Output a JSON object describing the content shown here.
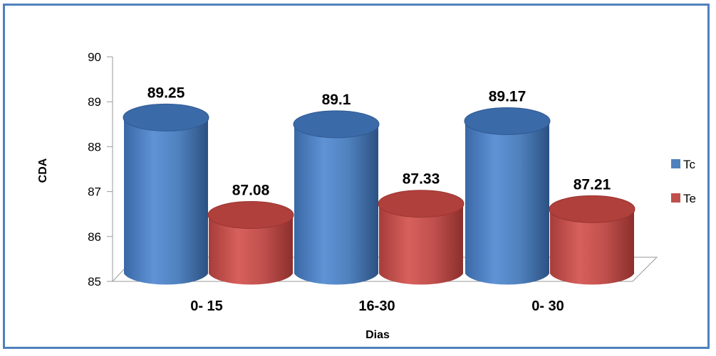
{
  "chart_data": {
    "type": "bar",
    "categories": [
      "0- 15",
      "16-30",
      "0- 30"
    ],
    "series": [
      {
        "name": "Tc",
        "values": [
          89.25,
          89.1,
          89.17
        ],
        "color": "#4f81bd"
      },
      {
        "name": "Te",
        "values": [
          87.08,
          87.33,
          87.21
        ],
        "color": "#c0504d"
      }
    ],
    "data_labels": [
      [
        "89.25",
        "89.1",
        "89.17"
      ],
      [
        "87.08",
        "87.33",
        "87.21"
      ]
    ],
    "xlabel": "Dias",
    "ylabel": "CDA",
    "ylim": [
      85,
      90
    ],
    "yticks": [
      "85",
      "86",
      "87",
      "88",
      "89",
      "90"
    ],
    "legend": "right",
    "grid": false,
    "style": "3d-cylinder"
  }
}
